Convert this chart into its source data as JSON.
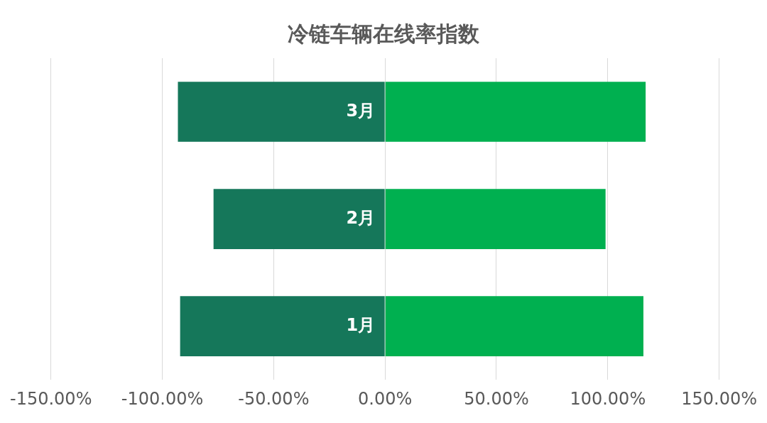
{
  "chart_data": {
    "type": "bar",
    "title": "冷链车辆在线率指数",
    "orientation": "horizontal",
    "stacked": true,
    "categories": [
      "3月",
      "2月",
      "1月"
    ],
    "series": [
      {
        "color": "#15775a",
        "values": [
          -93,
          -77,
          -92
        ]
      },
      {
        "color": "#00b050",
        "values": [
          117,
          99,
          116
        ]
      }
    ],
    "xlim": [
      -150,
      150
    ],
    "xticks": [
      {
        "value": -150,
        "label": "-150.00%"
      },
      {
        "value": -100,
        "label": "-100.00%"
      },
      {
        "value": -50,
        "label": "-50.00%"
      },
      {
        "value": 0,
        "label": "0.00%"
      },
      {
        "value": 50,
        "label": "50.00%"
      },
      {
        "value": 100,
        "label": "100.00%"
      },
      {
        "value": 150,
        "label": "150.00%"
      }
    ],
    "grid": "x",
    "legend": false
  }
}
